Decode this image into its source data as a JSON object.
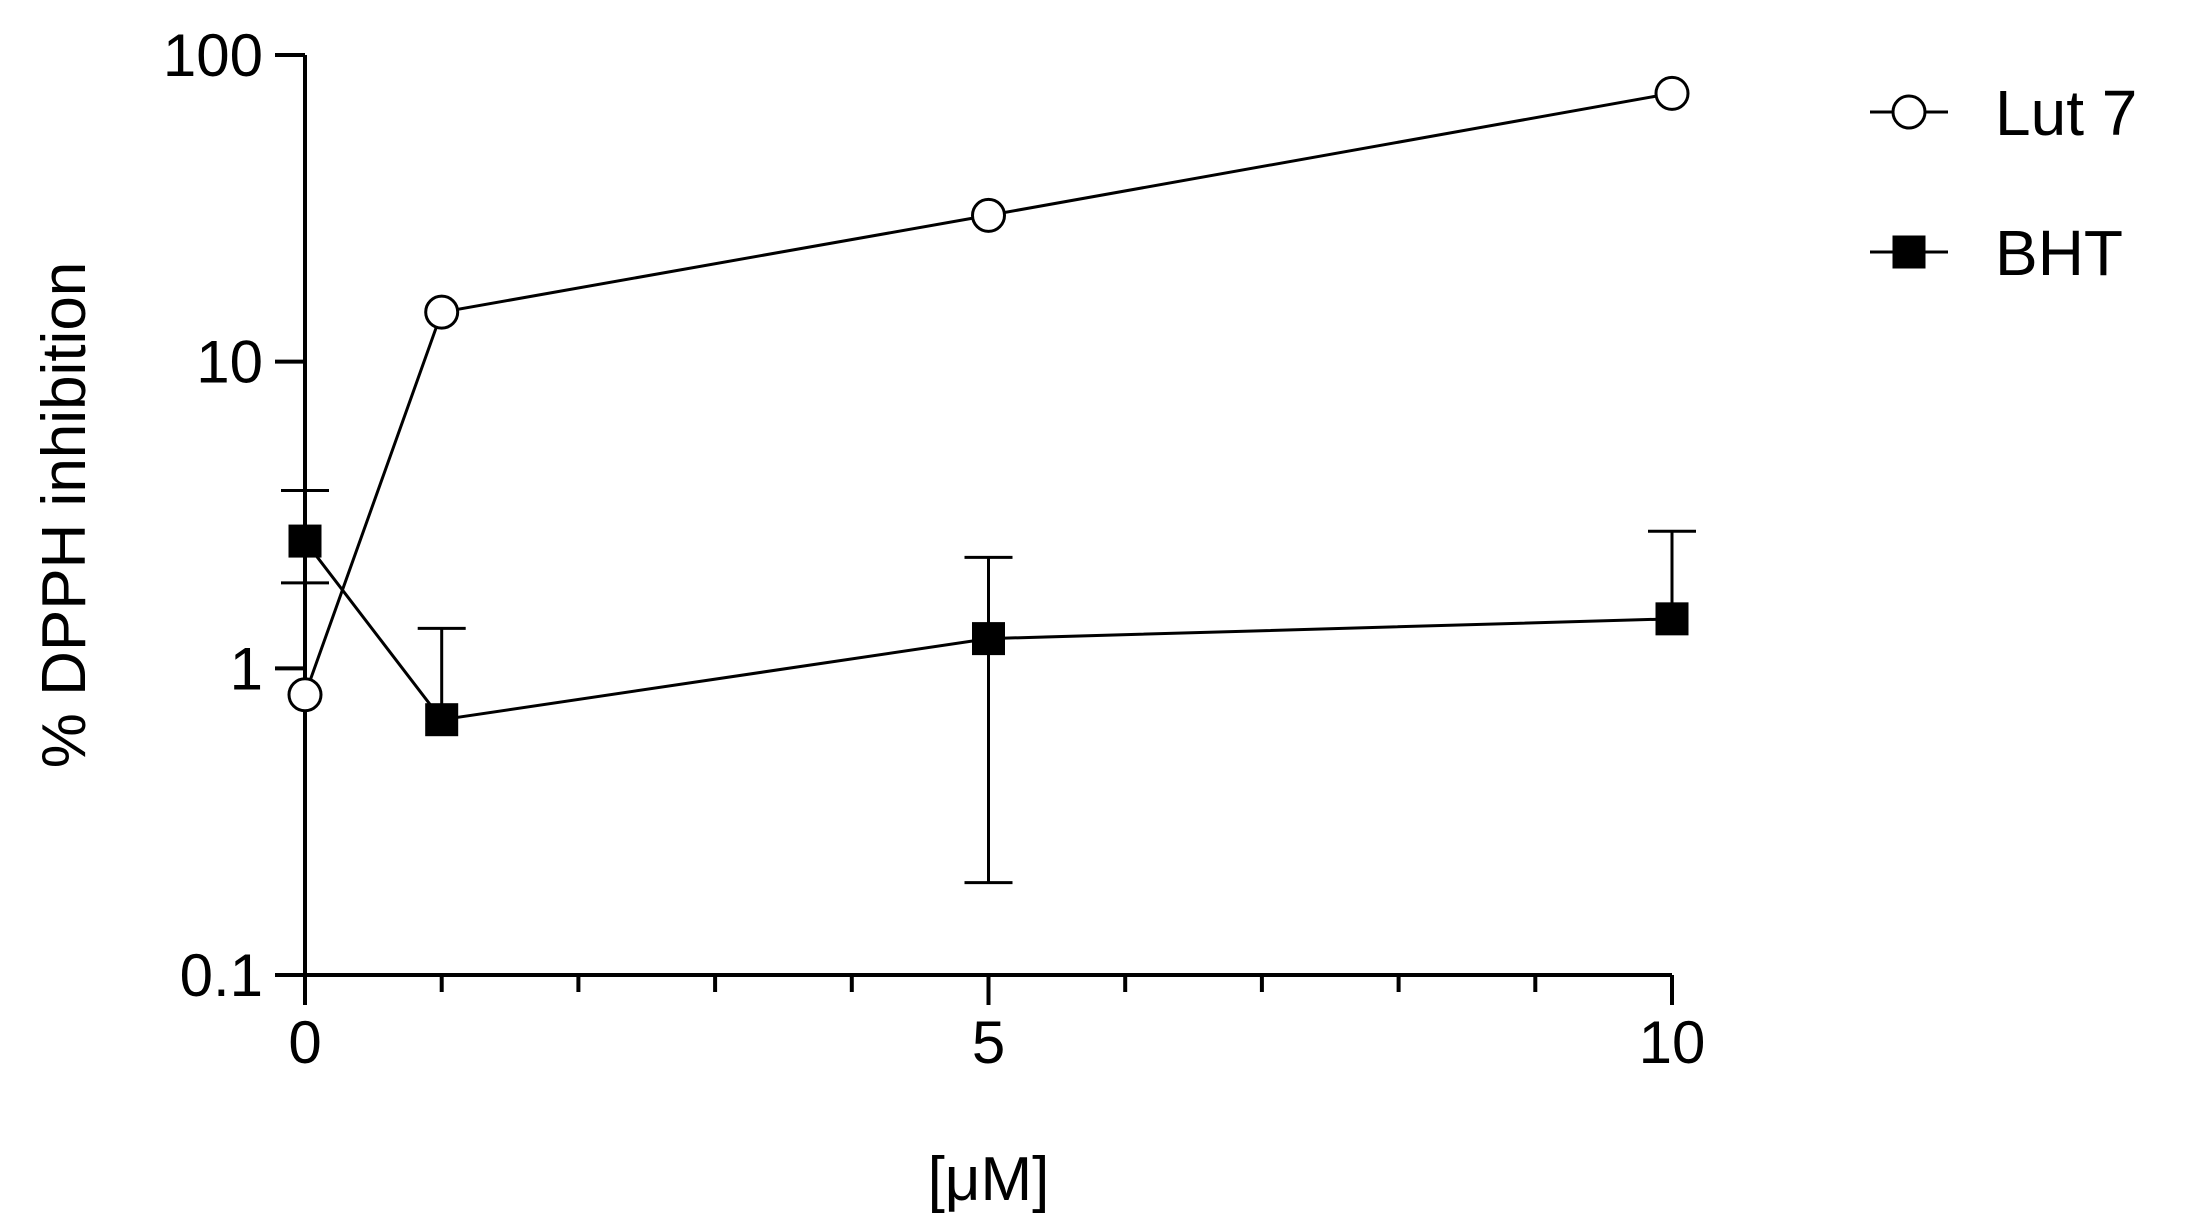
{
  "chart_data": {
    "type": "line",
    "title": "",
    "xlabel": "[μM]",
    "ylabel": "% DPPH inhibition",
    "x": [
      0,
      1,
      5,
      10
    ],
    "xlim": [
      0,
      10
    ],
    "ylim": [
      0.1,
      100
    ],
    "yscale": "log",
    "x_tick_labels": [
      "0",
      "5",
      "10"
    ],
    "y_tick_labels": [
      "0.1",
      "1",
      "10",
      "100"
    ],
    "grid": false,
    "legend_position": "top-right",
    "series": [
      {
        "name": "Lut 7",
        "marker": "open-circle",
        "color": "#000000",
        "values": [
          0.82,
          14.5,
          30,
          75
        ],
        "error": [
          null,
          null,
          null,
          null
        ]
      },
      {
        "name": "BHT",
        "marker": "filled-square",
        "color": "#000000",
        "values": [
          2.6,
          0.68,
          1.25,
          1.45
        ],
        "error_low": [
          1.9,
          null,
          0.2,
          null
        ],
        "error_high": [
          3.8,
          1.35,
          2.3,
          2.8
        ]
      }
    ]
  }
}
